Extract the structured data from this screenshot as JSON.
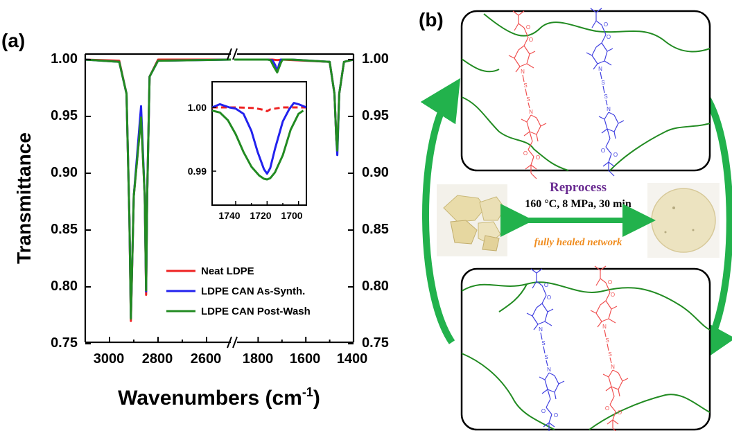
{
  "panel_a": {
    "label": "(a)",
    "ylabel": "Transmittance",
    "xlabel_main": "Wavenumbers (cm",
    "xlabel_sup": "-1",
    "xlabel_close": ")",
    "left_ticks": [
      "1.00",
      "0.95",
      "0.90",
      "0.85",
      "0.80",
      "0.75"
    ],
    "right_ticks": [
      "1.00",
      "0.95",
      "0.90",
      "0.85",
      "0.80",
      "0.75"
    ],
    "x_ticks_left": [
      "3000",
      "2800",
      "2600"
    ],
    "x_ticks_right": [
      "1800",
      "1600",
      "1400"
    ],
    "inset_y_ticks": [
      "1.00",
      "0.99"
    ],
    "inset_x_ticks": [
      "1740",
      "1720",
      "1700"
    ]
  },
  "chart_data": {
    "type": "line",
    "xlabel": "Wavenumbers (cm-1)",
    "ylabel": "Transmittance",
    "ylim": [
      0.75,
      1.005
    ],
    "x_segments": [
      [
        3100,
        2500
      ],
      [
        1900,
        1400
      ]
    ],
    "axis_break": true,
    "reversed_x": true,
    "legend_position": "bottom-right",
    "series": [
      {
        "name": "Neat LDPE",
        "color": "#ee2222",
        "dash": "solid",
        "width": 3,
        "x": [
          3100,
          2960,
          2930,
          2918,
          2912,
          2900,
          2870,
          2855,
          2849,
          2845,
          2835,
          2800,
          2500,
          1900,
          1740,
          1720,
          1700,
          1500,
          1480,
          1472,
          1468,
          1460,
          1440,
          1400
        ],
        "y": [
          1.0,
          0.999,
          0.97,
          0.86,
          0.77,
          0.88,
          0.95,
          0.88,
          0.793,
          0.88,
          0.985,
          1.0,
          1.0,
          1.0,
          1.0,
          0.9995,
          1.0,
          0.998,
          0.97,
          0.93,
          0.922,
          0.97,
          0.998,
          1.0
        ]
      },
      {
        "name": "LDPE CAN As-Synth.",
        "color": "#2222ee",
        "dash": "solid",
        "width": 3,
        "x": [
          3100,
          2960,
          2930,
          2918,
          2912,
          2900,
          2870,
          2855,
          2849,
          2845,
          2835,
          2800,
          2500,
          1900,
          1760,
          1740,
          1728,
          1720,
          1712,
          1705,
          1700,
          1660,
          1500,
          1480,
          1472,
          1468,
          1460,
          1440,
          1400
        ],
        "y": [
          1.0,
          0.998,
          0.97,
          0.86,
          0.773,
          0.88,
          0.959,
          0.88,
          0.796,
          0.88,
          0.985,
          0.999,
          1.0,
          1.0,
          1.0,
          0.9995,
          0.995,
          0.9896,
          0.996,
          1.0,
          1.0,
          1.0,
          0.998,
          0.97,
          0.93,
          0.916,
          0.97,
          0.998,
          1.0
        ]
      },
      {
        "name": "LDPE CAN Post-Wash",
        "color": "#228b22",
        "dash": "solid",
        "width": 3,
        "x": [
          3100,
          2960,
          2930,
          2918,
          2912,
          2900,
          2870,
          2855,
          2849,
          2845,
          2835,
          2800,
          2500,
          1900,
          1760,
          1748,
          1735,
          1720,
          1705,
          1698,
          1660,
          1500,
          1480,
          1472,
          1468,
          1460,
          1440,
          1400
        ],
        "y": [
          1.0,
          0.998,
          0.97,
          0.86,
          0.772,
          0.88,
          0.949,
          0.88,
          0.797,
          0.88,
          0.985,
          0.999,
          1.0,
          1.0,
          1.0,
          0.9995,
          0.994,
          0.9887,
          0.997,
          1.0,
          1.0,
          0.998,
          0.97,
          0.93,
          0.92,
          0.97,
          0.998,
          1.0
        ]
      }
    ],
    "inset": {
      "xlim": [
        1755,
        1695
      ],
      "ylim": [
        0.9875,
        1.0015
      ],
      "x_ticks": [
        1740,
        1720,
        1700
      ],
      "y_ticks": [
        1.0,
        0.99
      ],
      "series": [
        {
          "name": "Neat LDPE",
          "color": "#ee2222",
          "dash": "dashed",
          "x": [
            1755,
            1740,
            1728,
            1722,
            1720,
            1718,
            1710,
            1695
          ],
          "y": [
            1.0,
            1.0,
            0.9999,
            0.9996,
            0.9994,
            0.9997,
            1.0,
            1.0
          ]
        },
        {
          "name": "LDPE CAN As-Synth.",
          "color": "#2222ee",
          "dash": "solid",
          "x": [
            1755,
            1750,
            1744,
            1740,
            1735,
            1730,
            1726,
            1722,
            1720,
            1718,
            1715,
            1710,
            1706,
            1703,
            1700,
            1695
          ],
          "y": [
            1.0,
            1.0005,
            1.0,
            0.9998,
            0.999,
            0.9963,
            0.993,
            0.9903,
            0.9896,
            0.9905,
            0.9935,
            0.9978,
            0.9997,
            1.0007,
            1.0005,
            1.0
          ]
        },
        {
          "name": "LDPE CAN Post-Wash",
          "color": "#228b22",
          "dash": "solid",
          "x": [
            1755,
            1750,
            1745,
            1740,
            1735,
            1730,
            1725,
            1722,
            1720,
            1718,
            1715,
            1710,
            1705,
            1700,
            1697
          ],
          "y": [
            0.9995,
            0.9992,
            0.998,
            0.9958,
            0.993,
            0.9907,
            0.9893,
            0.9888,
            0.9887,
            0.9889,
            0.9898,
            0.9925,
            0.9965,
            0.999,
            0.9995
          ]
        }
      ]
    }
  },
  "panel_b": {
    "label": "(b)",
    "reprocess_title": "Reprocess",
    "reprocess_conditions": "160 °C, 8 MPa, 30 min",
    "healed_text": "fully healed network",
    "molecule_atoms": {
      "s": "S",
      "n": "N",
      "o": "O"
    },
    "colors": {
      "accent": "#22b24c",
      "title": "#6a2c91",
      "healed": "#f08c1e",
      "red": "#f05050",
      "blue": "#4040e0",
      "network": "#228b22"
    }
  }
}
